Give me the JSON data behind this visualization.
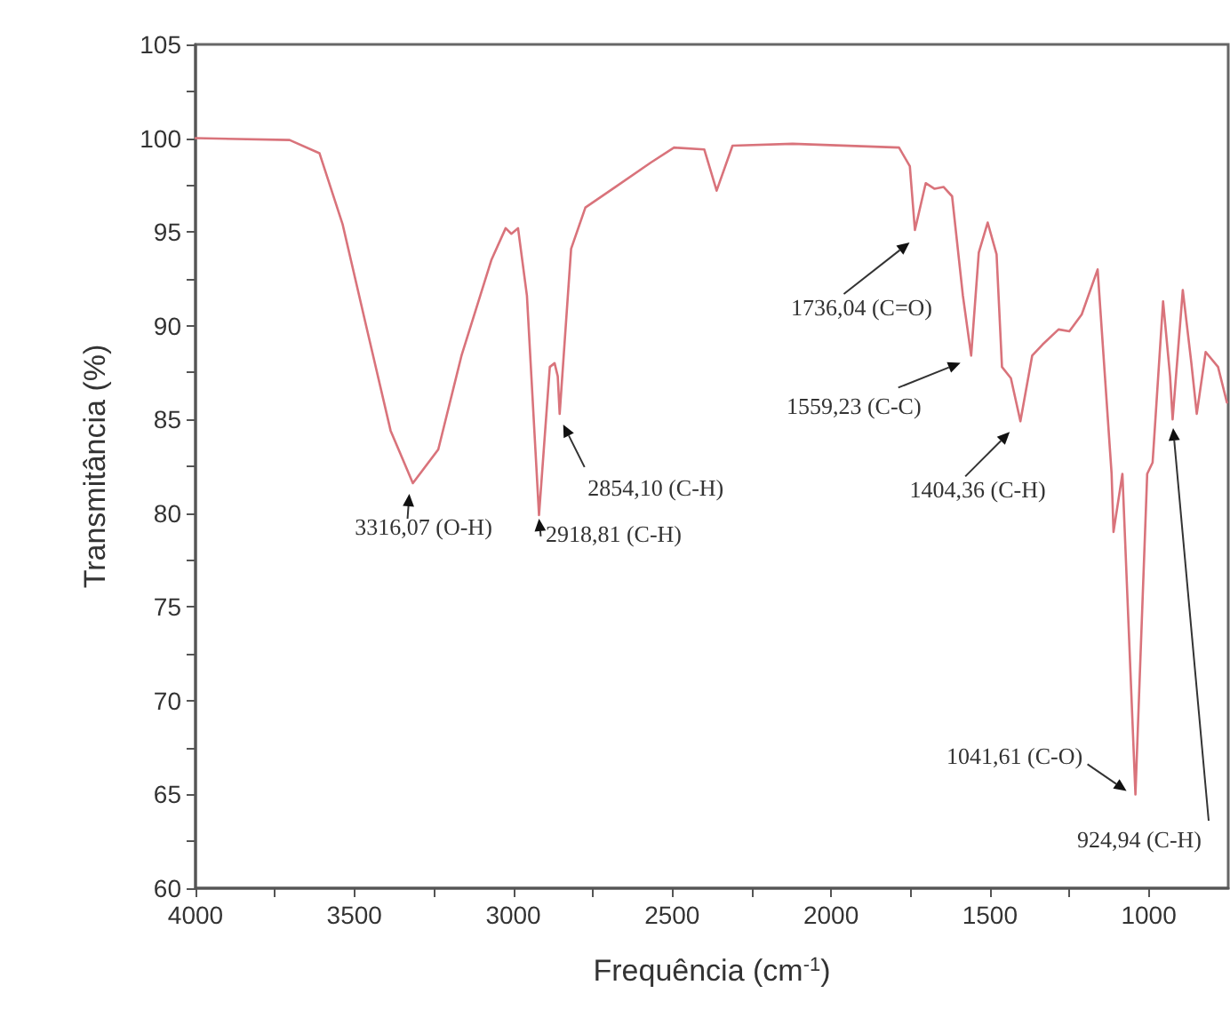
{
  "chart_data": {
    "type": "line",
    "xlabel": "Frequência (cm$^{-1}$)",
    "ylabel": "Transmitância (%)",
    "x": [
      4000,
      3704,
      3610,
      3537,
      3459,
      3386,
      3316,
      3236,
      3163,
      3069,
      3024,
      3006,
      2985,
      2957,
      2919,
      2885,
      2870,
      2860,
      2854,
      2818,
      2773,
      2678,
      2567,
      2494,
      2399,
      2360,
      2310,
      2121,
      1786,
      1752,
      1736,
      1702,
      1674,
      1646,
      1619,
      1585,
      1559,
      1535,
      1507,
      1479,
      1462,
      1434,
      1404,
      1367,
      1334,
      1284,
      1250,
      1211,
      1161,
      1117,
      1111,
      1083,
      1042,
      1005,
      988,
      955,
      933,
      925,
      893,
      866,
      849,
      821,
      782,
      754
    ],
    "series": [
      {
        "color": "#d9737b",
        "values": [
          100,
          99.9,
          99.2,
          95.4,
          89.7,
          84.4,
          81.6,
          83.4,
          88.4,
          93.5,
          95.2,
          94.9,
          95.2,
          91.6,
          79.9,
          87.8,
          88,
          87.3,
          85.3,
          94.1,
          96.3,
          97.4,
          98.7,
          99.5,
          99.4,
          97.2,
          99.6,
          99.7,
          99.5,
          98.5,
          95.1,
          97.6,
          97.3,
          97.4,
          96.9,
          91.6,
          88.4,
          93.9,
          95.5,
          93.8,
          87.8,
          87.2,
          84.9,
          88.4,
          89,
          89.8,
          89.7,
          90.6,
          93,
          82.1,
          79,
          82.1,
          65,
          82.1,
          82.7,
          91.3,
          87.3,
          85,
          91.9,
          88,
          85.3,
          88.6,
          87.8,
          85.9
        ]
      }
    ],
    "xlim": [
      4000,
      750
    ],
    "xticks": [
      4000,
      {
        "value": 3750,
        "label": null
      },
      3500,
      {
        "value": 3250,
        "label": null
      },
      3000,
      {
        "value": 2750,
        "label": null
      },
      2500,
      {
        "value": 2250,
        "label": null
      },
      2000,
      {
        "value": 1750,
        "label": null
      },
      1500,
      {
        "value": 1250,
        "label": null
      },
      1000
    ],
    "ylim": [
      60,
      105
    ],
    "yticks": [
      60,
      {
        "value": 62.5,
        "label": null
      },
      65,
      {
        "value": 67.5,
        "label": null
      },
      70,
      {
        "value": 72.5,
        "label": null
      },
      75,
      {
        "value": 77.5,
        "label": null
      },
      80,
      {
        "value": 82.5,
        "label": null
      },
      85,
      {
        "value": 87.5,
        "label": null
      },
      90,
      {
        "value": 92.5,
        "label": null
      },
      95,
      {
        "value": 97.5,
        "label": null
      },
      100,
      {
        "value": 102.5,
        "label": null
      },
      105
    ],
    "annotations": [
      {
        "text": "3316,07 (O-H)",
        "x": 3316,
        "y": 81.6
      },
      {
        "text": "2918,81 (C-H)",
        "x": 2919,
        "y": 79.9
      },
      {
        "text": "2854,10 (C-H)",
        "x": 2854,
        "y": 85.3
      },
      {
        "text": "1736,04 (C=O)",
        "x": 1736,
        "y": 95.1
      },
      {
        "text": "1559,23 (C-C)",
        "x": 1559,
        "y": 88.4
      },
      {
        "text": "1404,36 (C-H)",
        "x": 1404,
        "y": 84.9
      },
      {
        "text": "1041,61 (C-O)",
        "x": 1042,
        "y": 65
      },
      "924,94 (C-H)"
    ],
    "grid": false,
    "marker": "none",
    "line_style": "solid"
  }
}
